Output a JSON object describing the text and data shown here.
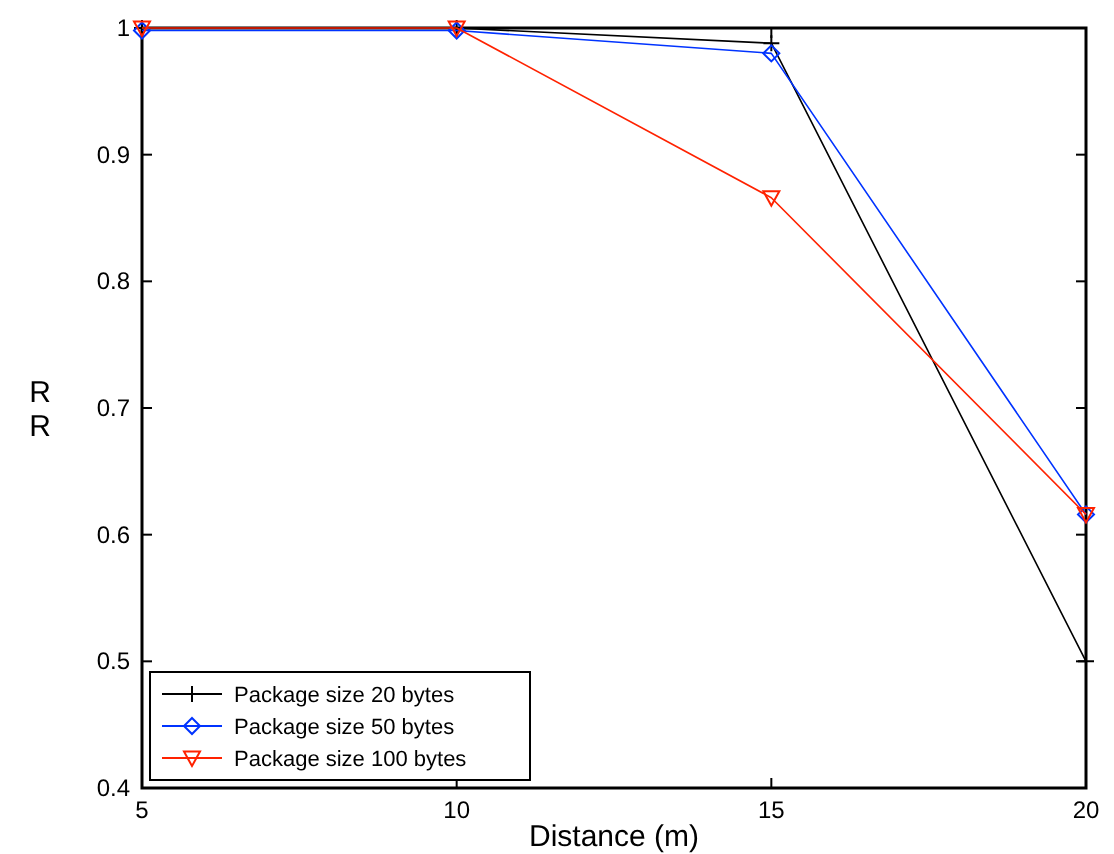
{
  "chart_data": {
    "type": "line",
    "xlabel": "Distance (m)",
    "ylabel": "R\nR",
    "x": [
      5,
      10,
      15,
      20
    ],
    "series": [
      {
        "name": "Package size 20 bytes",
        "color": "#000000",
        "marker": "cross",
        "values": [
          1,
          1,
          0.988,
          0.5
        ]
      },
      {
        "name": "Package size 50 bytes",
        "color": "#0033ff",
        "marker": "diamond",
        "values": [
          0.998,
          0.998,
          0.98,
          0.616
        ]
      },
      {
        "name": "Package size 100 bytes",
        "color": "#ff2200",
        "marker": "triangle",
        "values": [
          1,
          1,
          0.866,
          0.616
        ]
      }
    ],
    "xlim": [
      5,
      20
    ],
    "xticks": [
      5,
      10,
      15,
      20
    ],
    "ylim": [
      0.4,
      1
    ],
    "yticks": [
      0.4,
      0.5,
      0.6,
      0.7,
      0.8,
      0.9,
      1
    ],
    "grid": false,
    "legend": "bottom left"
  }
}
